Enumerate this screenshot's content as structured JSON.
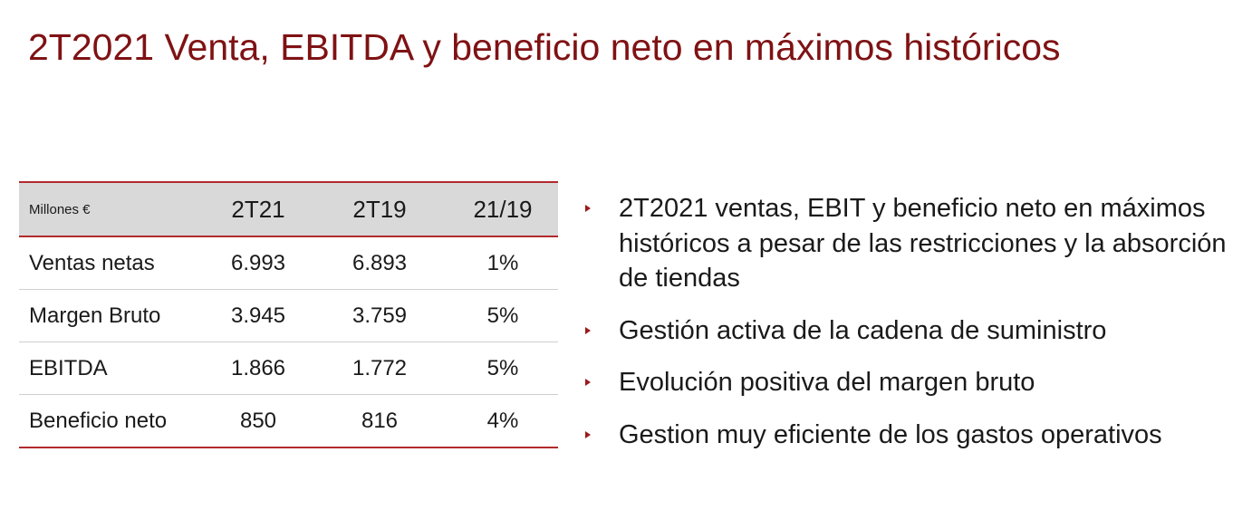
{
  "title": "2T2021 Venta, EBITDA y beneficio neto en máximos históricos",
  "table": {
    "header": {
      "label": "Millones €",
      "columns": [
        "2T21",
        "2T19",
        "21/19"
      ]
    },
    "rows": [
      {
        "label": "Ventas netas",
        "values": [
          "6.993",
          "6.893",
          "1%"
        ]
      },
      {
        "label": "Margen Bruto",
        "values": [
          "3.945",
          "3.759",
          "5%"
        ]
      },
      {
        "label": "EBITDA",
        "values": [
          "1.866",
          "1.772",
          "5%"
        ]
      },
      {
        "label": "Beneficio neto",
        "values": [
          "850",
          "816",
          "4%"
        ]
      }
    ]
  },
  "bullets": [
    "2T2021 ventas, EBIT y beneficio neto en máximos históricos a pesar de las restricciones y la absorción de tiendas",
    "Gestión activa de la cadena de suministro",
    "Evolución positiva del margen bruto",
    "Gestion muy eficiente de los gastos operativos"
  ],
  "colors": {
    "title": "#7f1214",
    "accent_line": "#b22a2d",
    "header_bg": "#d9d9d9",
    "bullet_marker": "#9a1a1d"
  }
}
